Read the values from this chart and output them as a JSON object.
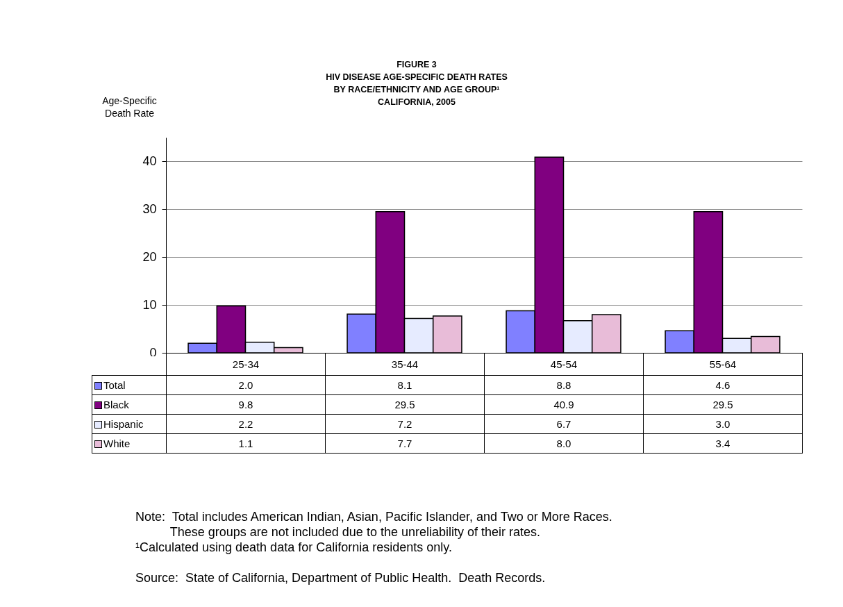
{
  "chart_data": {
    "type": "bar",
    "title": "FIGURE 3",
    "subtitle": "HIV DISEASE AGE-SPECIFIC DEATH RATES\nBY RACE/ETHNICITY AND AGE GROUP¹\nCALIFORNIA, 2005",
    "ylabel": "Age-Specific\nDeath Rate",
    "categories": [
      "25-34",
      "35-44",
      "45-54",
      "55-64"
    ],
    "series": [
      {
        "name": "Total",
        "color": "#8080ff",
        "values": [
          2.0,
          8.1,
          8.8,
          4.6
        ],
        "value_labels": [
          "2.0",
          "8.1",
          "8.8",
          "4.6"
        ]
      },
      {
        "name": "Black",
        "color": "#800080",
        "values": [
          9.8,
          29.5,
          40.9,
          29.5
        ],
        "value_labels": [
          "9.8",
          "29.5",
          "40.9",
          "29.5"
        ]
      },
      {
        "name": "Hispanic",
        "color": "#e6ebff",
        "values": [
          2.2,
          7.2,
          6.7,
          3.0
        ],
        "value_labels": [
          "2.2",
          "7.2",
          "6.7",
          "3.0"
        ]
      },
      {
        "name": "White",
        "color": "#e8bcd8",
        "values": [
          1.1,
          7.7,
          8.0,
          3.4
        ],
        "value_labels": [
          "1.1",
          "7.7",
          "8.0",
          "3.4"
        ]
      }
    ],
    "ylim": [
      0,
      45
    ],
    "yticks": [
      0,
      10,
      20,
      30,
      40
    ],
    "grid": "y",
    "legend": "bottom left",
    "annotations": [
      "Note:  Total includes American Indian, Asian, Pacific Islander, and Two or More Races.\n          These groups are not included due to the unreliability of their rates.",
      "¹Calculated using death data for California residents only.",
      "Source:  State of California, Department of Public Health.  Death Records."
    ]
  }
}
